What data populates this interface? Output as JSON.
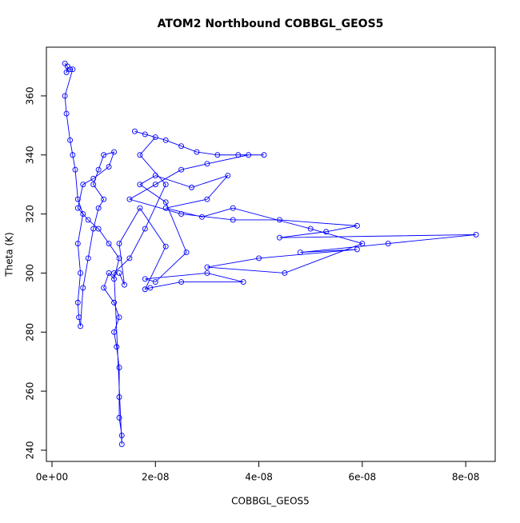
{
  "chart_data": {
    "type": "line",
    "title": "ATOM2 Northbound COBBGL_GEOS5",
    "x_label": "COBBGL_GEOS5",
    "y_label": "Theta (K)",
    "x": [
      2.5e-09,
      3e-09,
      2.8e-09,
      3.5e-09,
      4e-09,
      2.5e-09,
      2.8e-09,
      3.5e-09,
      4e-09,
      4.5e-09,
      5e-09,
      6e-09,
      5e-09,
      5.5e-09,
      5e-09,
      5.2e-09,
      5.5e-09,
      6e-09,
      7e-09,
      8e-09,
      9e-09,
      1e-08,
      8e-09,
      9e-09,
      1e-08,
      1.2e-08,
      1.1e-08,
      8e-09,
      6e-09,
      5e-09,
      7e-09,
      9e-09,
      1.1e-08,
      1.3e-08,
      1.2e-08,
      1.1e-08,
      1e-08,
      1.2e-08,
      1.3e-08,
      1.2e-08,
      1.25e-08,
      1.3e-08,
      1.3e-08,
      1.3e-08,
      1.35e-08,
      1.35e-08,
      1.2e-08,
      1.5e-08,
      1.8e-08,
      2.2e-08,
      1.7e-08,
      2e-08,
      1.6e-08,
      1.8e-08,
      2.2e-08,
      2.5e-08,
      2.8e-08,
      3.2e-08,
      3.6e-08,
      4.1e-08,
      3.8e-08,
      3e-08,
      2.5e-08,
      2e-08,
      1.5e-08,
      2.5e-08,
      3.5e-08,
      4.4e-08,
      5.9e-08,
      5.3e-08,
      4.4e-08,
      8.2e-08,
      6.5e-08,
      4.8e-08,
      5.9e-08,
      4e-08,
      3e-08,
      4.5e-08,
      6e-08,
      5e-08,
      3.5e-08,
      2.9e-08,
      2.2e-08,
      3e-08,
      3.4e-08,
      2.7e-08,
      2e-08,
      1.7e-08,
      2.2e-08,
      2.6e-08,
      2e-08,
      1.8e-08,
      3e-08,
      3.7e-08,
      2.5e-08,
      1.9e-08,
      1.8e-08,
      2.2e-08,
      1.7e-08,
      1.3e-08,
      1.4e-08,
      1.3e-08
    ],
    "values": [
      371,
      370,
      368,
      369,
      369,
      360,
      354,
      345,
      340,
      335,
      325,
      320,
      310,
      300,
      290,
      285,
      282,
      295,
      305,
      315,
      322,
      325,
      330,
      335,
      340,
      341,
      336,
      332,
      330,
      322,
      318,
      315,
      310,
      305,
      298,
      300,
      295,
      290,
      285,
      280,
      275,
      268,
      258,
      251,
      245,
      242,
      300,
      305,
      315,
      330,
      340,
      346,
      348,
      347,
      345,
      343,
      341,
      340,
      340,
      340,
      340,
      337,
      335,
      330,
      325,
      320,
      318,
      318,
      316,
      314,
      312,
      313,
      310,
      307,
      308,
      305,
      302,
      300,
      310,
      315,
      322,
      319,
      322,
      325,
      333,
      329,
      333,
      330,
      324,
      307,
      297,
      298,
      300,
      297,
      297,
      295,
      294.5,
      309,
      322,
      310,
      296,
      300
    ],
    "color": "#0000ff",
    "markers": true,
    "xlim": [
      -1.08e-09,
      8.57e-08
    ],
    "xticks": [
      {
        "value": 0,
        "label": "0e+00"
      },
      {
        "value": 2e-08,
        "label": "2e-08"
      },
      {
        "value": 4e-08,
        "label": "4e-08"
      },
      {
        "value": 6e-08,
        "label": "6e-08"
      },
      {
        "value": 8e-08,
        "label": "8e-08"
      }
    ],
    "ylim": [
      236.2,
      376.5
    ],
    "yticks": [
      240,
      260,
      280,
      300,
      320,
      340,
      360
    ]
  }
}
